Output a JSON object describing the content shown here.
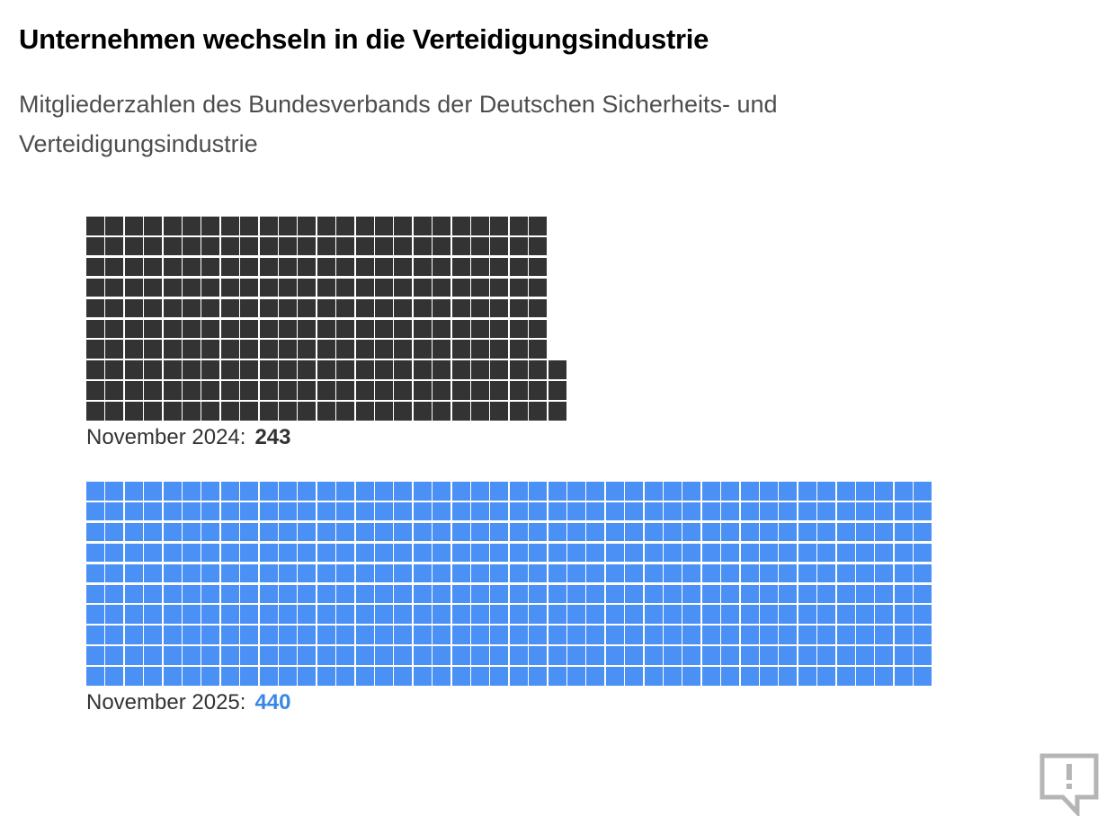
{
  "colors": {
    "series_2024": "#333333",
    "series_2025": "#4a90f5",
    "value_2025": "#3a86e8"
  },
  "chart_data": {
    "type": "waffle",
    "title": "Unternehmen wechseln in die Verteidigungsindustrie",
    "subtitle": "Mitgliederzahlen des Bundesverbands der Deutschen Sicherheits- und Verteidigungsindustrie",
    "series": [
      {
        "name": "November 2024",
        "value": 243,
        "value_label": "243"
      },
      {
        "name": "November 2025",
        "value": 440,
        "value_label": "440"
      }
    ]
  },
  "icons": {
    "feedback": "feedback-speech-bubble-exclamation-icon"
  }
}
